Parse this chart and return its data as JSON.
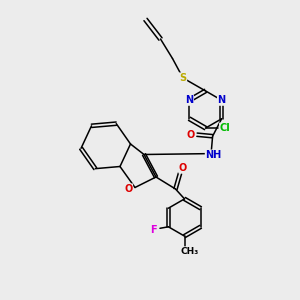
{
  "bg_color": "#ececec",
  "bond_color": "#000000",
  "atom_colors": {
    "N": "#0000cc",
    "O": "#dd0000",
    "S": "#bbaa00",
    "Cl": "#00bb00",
    "F": "#dd00dd",
    "C": "#000000",
    "H": "#000000"
  },
  "font_size": 7.0,
  "line_width": 1.1
}
